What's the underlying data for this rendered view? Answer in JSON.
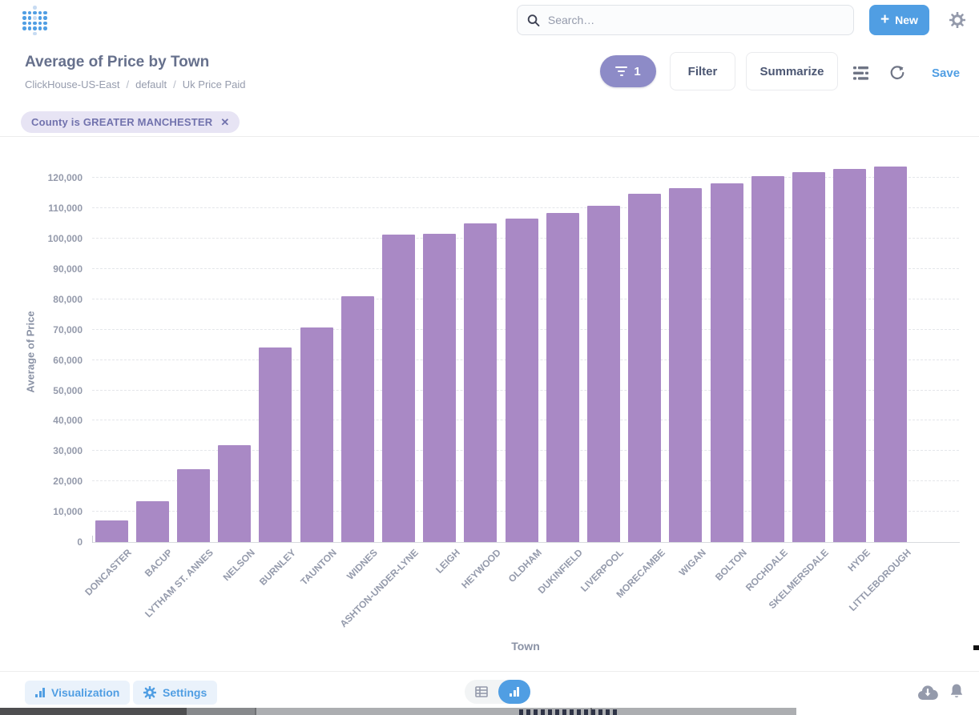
{
  "header": {
    "logo_icon": "metabase-logo",
    "search_placeholder": "Search…",
    "search_icon": "search-icon",
    "new_button_label": "New",
    "new_button_icon": "plus-icon",
    "settings_icon": "gear-icon"
  },
  "question": {
    "title": "Average of Price by Town",
    "breadcrumb": {
      "database": "ClickHouse-US-East",
      "schema": "default",
      "table": "Uk Price Paid",
      "separator": "/"
    },
    "filter_pill": {
      "icon": "funnel-icon",
      "count": "1"
    },
    "filter_button_label": "Filter",
    "summarize_button_label": "Summarize",
    "notebook_icon": "notebook-editor-icon",
    "refresh_icon": "refresh-icon",
    "save_label": "Save"
  },
  "filter_chips": [
    {
      "label": "County is GREATER MANCHESTER",
      "close_icon": "close-icon",
      "close_glyph": "✕"
    }
  ],
  "chart_data": {
    "type": "bar",
    "title": "Average of Price by Town",
    "xlabel": "Town",
    "ylabel": "Average of Price",
    "ylim": [
      0,
      125000
    ],
    "ytick_step": 10000,
    "yticks": [
      0,
      10000,
      20000,
      30000,
      40000,
      50000,
      60000,
      70000,
      80000,
      90000,
      100000,
      110000,
      120000
    ],
    "grid": "dashed-horizontal",
    "legend_position": "none",
    "bar_color": "#A989C5",
    "categories": [
      "DONCASTER",
      "BACUP",
      "LYTHAM ST. ANNES",
      "NELSON",
      "BURNLEY",
      "TAUNTON",
      "WIDNES",
      "ASHTON-UNDER-LYNE",
      "LEIGH",
      "HEYWOOD",
      "OLDHAM",
      "DUKINFIELD",
      "LIVERPOOL",
      "MORECAMBE",
      "WIGAN",
      "BOLTON",
      "ROCHDALE",
      "SKELMERSDALE",
      "HYDE",
      "LITTLEBOROUGH"
    ],
    "values": [
      7200,
      13500,
      24100,
      31900,
      64200,
      70800,
      81100,
      101300,
      101700,
      105000,
      106600,
      108400,
      110900,
      114900,
      116700,
      118200,
      120600,
      122000,
      123000,
      123800
    ]
  },
  "footer": {
    "visualization_button_label": "Visualization",
    "visualization_icon": "bar-chart-icon",
    "settings_button_label": "Settings",
    "settings_icon": "gear-icon",
    "view_toggle": {
      "table_icon": "table-icon",
      "chart_icon": "bar-chart-icon",
      "active_view": "chart"
    },
    "download_icon": "cloud-download-icon",
    "notification_icon": "bell-icon"
  },
  "colors": {
    "accent_blue": "#509EE3",
    "bar_purple": "#A989C5",
    "filter_pill_purple": "#8D8BC7",
    "chip_bg": "#E7E4F4",
    "chip_text": "#7172AD",
    "text_dark": "#4C5773",
    "text_gray": "#949AAB"
  }
}
